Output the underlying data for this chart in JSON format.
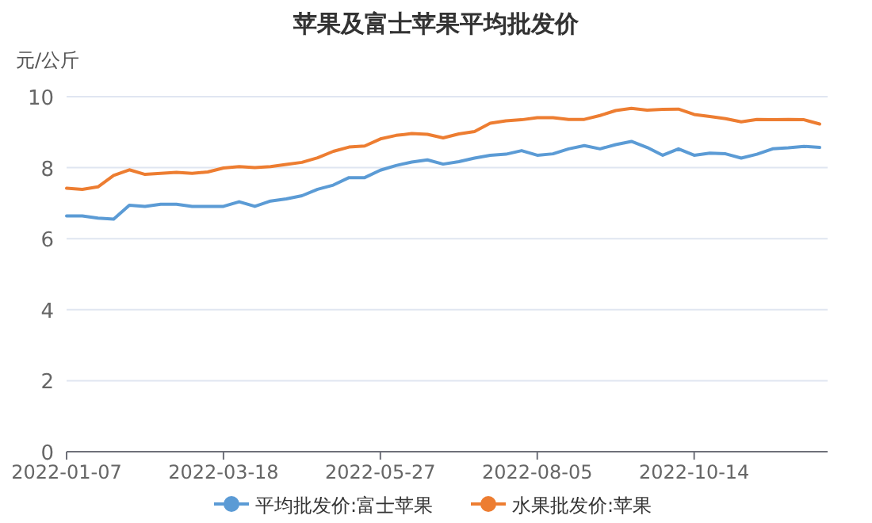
{
  "chart_data": {
    "type": "line",
    "title": "苹果及富士苹果平均批发价",
    "ylabel": "元/公斤",
    "categories": [
      "2022-01-07",
      null,
      null,
      null,
      null,
      null,
      null,
      null,
      null,
      null,
      "2022-03-18",
      null,
      null,
      null,
      null,
      null,
      null,
      null,
      null,
      null,
      "2022-05-27",
      null,
      null,
      null,
      null,
      null,
      null,
      null,
      null,
      null,
      "2022-08-05",
      null,
      null,
      null,
      null,
      null,
      null,
      null,
      null,
      null,
      "2022-10-14",
      null,
      null,
      null,
      null,
      null,
      null,
      null,
      null
    ],
    "series": [
      {
        "name": "平均批发价:富士苹果",
        "color": "#5b9bd5",
        "values": [
          6.64,
          6.64,
          6.58,
          6.55,
          6.94,
          6.91,
          6.97,
          6.97,
          6.91,
          6.91,
          6.91,
          7.04,
          6.91,
          7.06,
          7.12,
          7.21,
          7.39,
          7.51,
          7.72,
          7.72,
          7.93,
          8.06,
          8.16,
          8.22,
          8.1,
          8.17,
          8.27,
          8.35,
          8.38,
          8.48,
          8.35,
          8.39,
          8.53,
          8.62,
          8.53,
          8.65,
          8.74,
          8.57,
          8.35,
          8.53,
          8.35,
          8.41,
          8.39,
          8.27,
          8.38,
          8.53,
          8.56,
          8.6,
          8.57
        ]
      },
      {
        "name": "水果批发价:苹果",
        "color": "#ed7d31",
        "values": [
          7.42,
          7.39,
          7.46,
          7.78,
          7.94,
          7.81,
          7.84,
          7.87,
          7.84,
          7.88,
          7.99,
          8.03,
          8.0,
          8.03,
          8.09,
          8.15,
          8.28,
          8.46,
          8.58,
          8.61,
          8.81,
          8.91,
          8.96,
          8.94,
          8.84,
          8.95,
          9.02,
          9.25,
          9.32,
          9.35,
          9.41,
          9.41,
          9.36,
          9.36,
          9.47,
          9.61,
          9.67,
          9.62,
          9.64,
          9.65,
          9.5,
          9.44,
          9.38,
          9.29,
          9.36,
          9.35,
          9.36,
          9.35,
          9.23
        ]
      }
    ],
    "ylim": [
      0,
      10
    ],
    "yticks": [
      0,
      2,
      4,
      6,
      8,
      10
    ],
    "grid": "y",
    "legend": "bottom",
    "marker": "none",
    "line_style": "solid"
  }
}
